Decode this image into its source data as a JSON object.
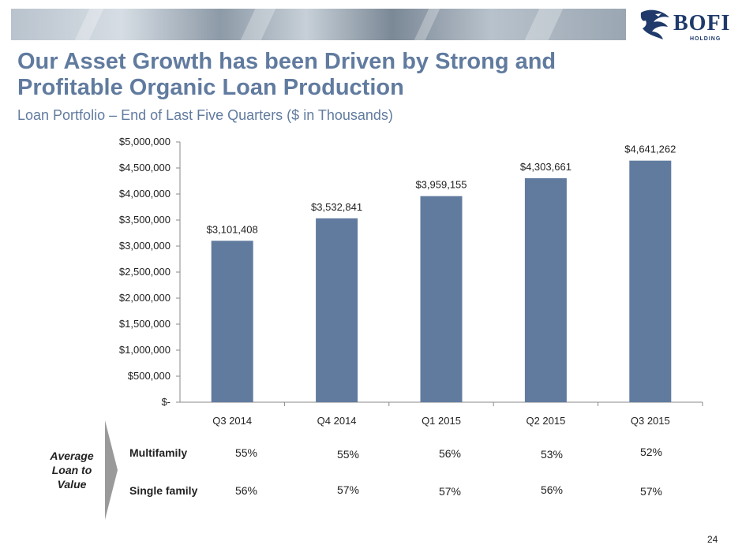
{
  "slide": {
    "title": "Our Asset Growth has been Driven by Strong and Profitable Organic Loan Production",
    "subtitle": "Loan Portfolio – End of Last Five Quarters ($ in Thousands)",
    "page_number": "24"
  },
  "logo": {
    "text": "BOFI",
    "subtext": "HOLDING",
    "color": "#1f3a6b"
  },
  "chart_data": {
    "type": "bar",
    "categories": [
      "Q3 2014",
      "Q4 2014",
      "Q1 2015",
      "Q2 2015",
      "Q3 2015"
    ],
    "values": [
      3101408,
      3532841,
      3959155,
      4303661,
      4641262
    ],
    "data_labels": [
      "$3,101,408",
      "$3,532,841",
      "$3,959,155",
      "$4,303,661",
      "$4,641,262"
    ],
    "y_ticks": [
      0,
      500000,
      1000000,
      1500000,
      2000000,
      2500000,
      3000000,
      3500000,
      4000000,
      4500000,
      5000000
    ],
    "y_tick_labels": [
      "$-",
      "$500,000",
      "$1,000,000",
      "$1,500,000",
      "$2,000,000",
      "$2,500,000",
      "$3,000,000",
      "$3,500,000",
      "$4,000,000",
      "$4,500,000",
      "$5,000,000"
    ],
    "ylim": [
      0,
      5000000
    ],
    "bar_color": "#617b9f",
    "grid": false,
    "legend": "none"
  },
  "ltv_table": {
    "label": "Average Loan to Value",
    "rows": [
      {
        "label": "Multifamily",
        "values": [
          "55%",
          "55%",
          "56%",
          "53%",
          "52%"
        ]
      },
      {
        "label": "Single family",
        "values": [
          "56%",
          "57%",
          "57%",
          "56%",
          "57%"
        ]
      }
    ]
  },
  "colors": {
    "title": "#617b9f",
    "bar": "#617b9f",
    "chevron": "#9a9a9a"
  }
}
